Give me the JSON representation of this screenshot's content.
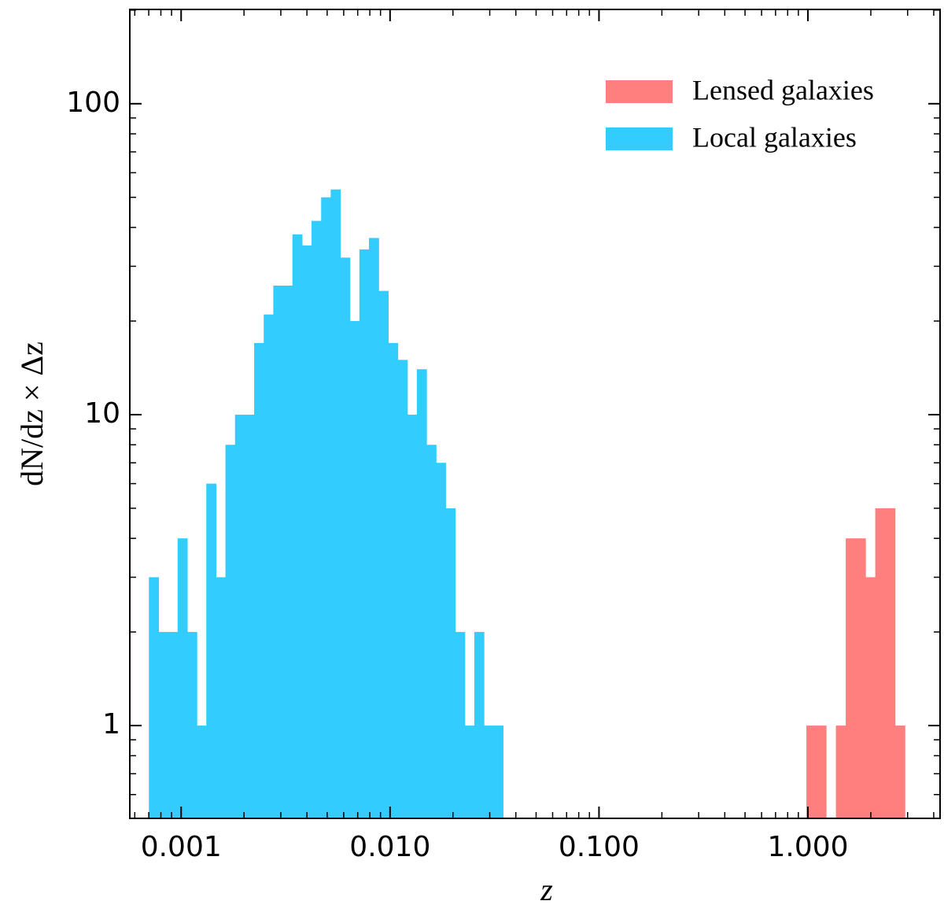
{
  "chart_data": {
    "type": "histogram",
    "xlabel": "z",
    "ylabel": "dN/dz × Δz",
    "xscale": "log",
    "yscale": "log",
    "xlim": [
      0.000568,
      4.29
    ],
    "ylim": [
      0.503,
      201
    ],
    "xticks": [
      {
        "value": 0.001,
        "label": "0.001"
      },
      {
        "value": 0.01,
        "label": "0.010"
      },
      {
        "value": 0.1,
        "label": "0.100"
      },
      {
        "value": 1,
        "label": "1.000"
      }
    ],
    "yticks": [
      1,
      10,
      100
    ],
    "legend": "upper right",
    "series": [
      {
        "name": "Lensed galaxies",
        "color": "#ff7f7f",
        "bins": [
          0.983,
          1.095,
          1.221,
          1.361,
          1.517,
          1.69,
          1.884,
          2.1,
          2.341,
          2.609,
          2.908
        ],
        "values": [
          1,
          1,
          0,
          1,
          4,
          4,
          3,
          5,
          5,
          1
        ]
      },
      {
        "name": "Local galaxies",
        "color": "#33ccff",
        "bins": [
          0.000701,
          0.000779,
          0.000866,
          0.000962,
          0.001069,
          0.001188,
          0.00132,
          0.001467,
          0.00163,
          0.001811,
          0.002012,
          0.002236,
          0.002485,
          0.002761,
          0.003068,
          0.003409,
          0.003789,
          0.00421,
          0.004679,
          0.005199,
          0.005777,
          0.00642,
          0.007134,
          0.007927,
          0.00881,
          0.00979,
          0.01088,
          0.01209,
          0.01343,
          0.01493,
          0.01659,
          0.01843,
          0.02049,
          0.02277,
          0.0253,
          0.02811,
          0.03124,
          0.03471
        ],
        "values": [
          3,
          2,
          2,
          4,
          2,
          1,
          6,
          3,
          8,
          10,
          10,
          17,
          21,
          26,
          26,
          38,
          35,
          42,
          50,
          53,
          32,
          20,
          34,
          37,
          25,
          17,
          15,
          10,
          14,
          8,
          7,
          5,
          2,
          1,
          2,
          1,
          1
        ]
      }
    ]
  }
}
